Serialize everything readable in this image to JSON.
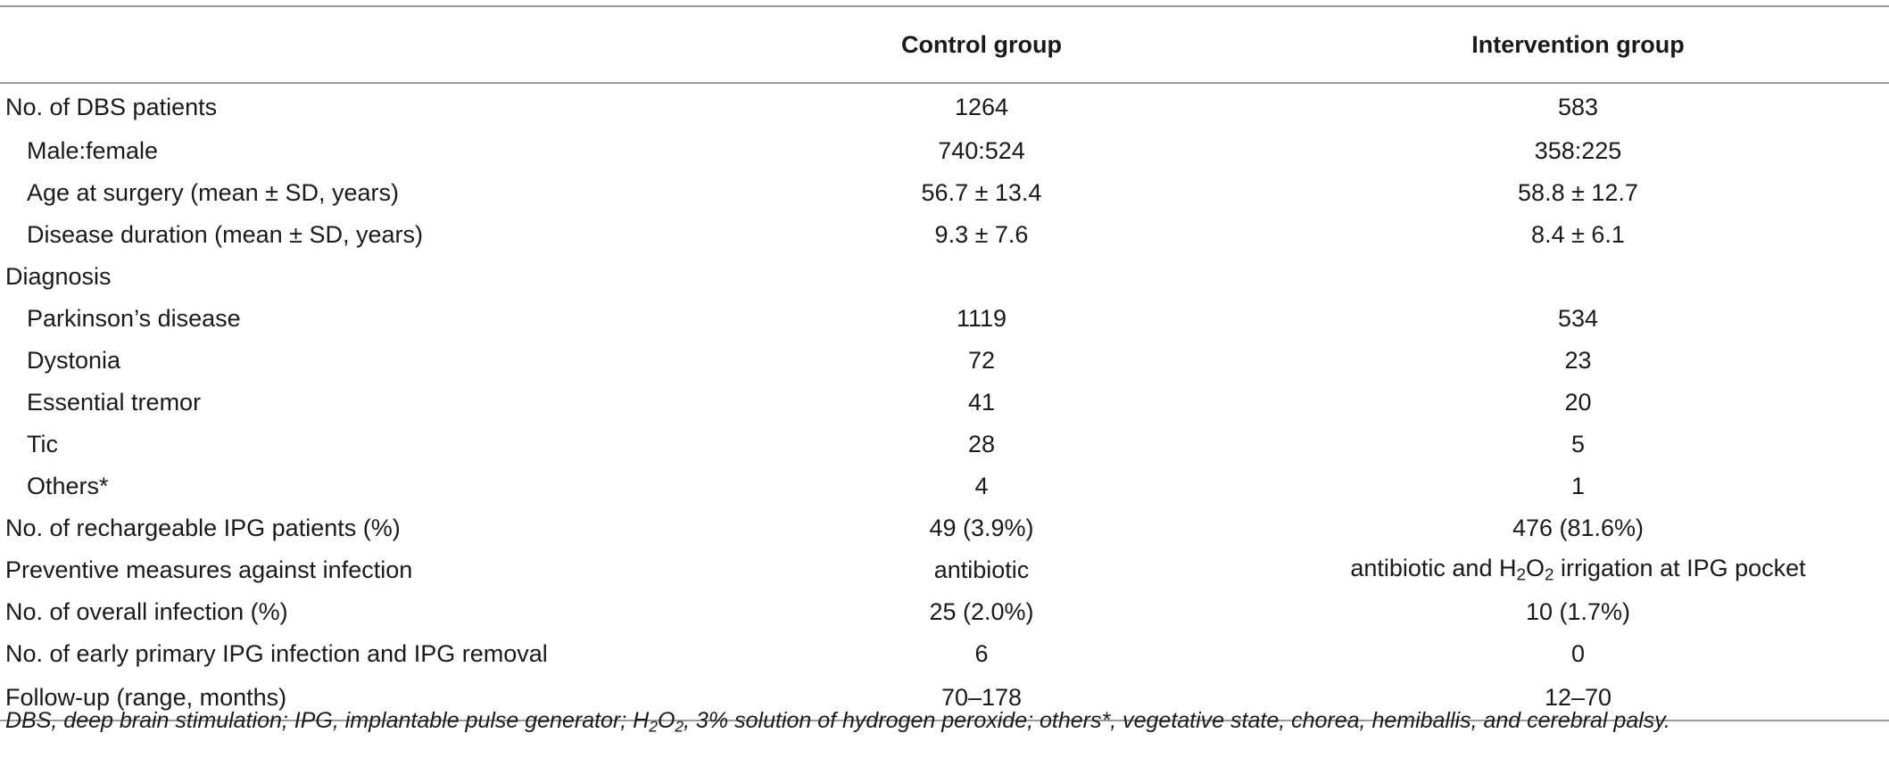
{
  "table": {
    "headers": [
      "",
      "Control group",
      "Intervention group"
    ],
    "rows": [
      {
        "label": "No. of DBS patients",
        "sub": false,
        "control": "1264",
        "intervention": "583"
      },
      {
        "label": "Male:female",
        "sub": true,
        "control": "740:524",
        "intervention": "358:225"
      },
      {
        "label": "Age at surgery (mean ± SD, years)",
        "sub": true,
        "control": "56.7 ± 13.4",
        "intervention": "58.8 ± 12.7"
      },
      {
        "label": "Disease duration (mean ± SD, years)",
        "sub": true,
        "control": "9.3 ± 7.6",
        "intervention": "8.4 ± 6.1"
      },
      {
        "label": "Diagnosis",
        "sub": false,
        "control": "",
        "intervention": ""
      },
      {
        "label": "Parkinson’s disease",
        "sub": true,
        "control": "1119",
        "intervention": "534"
      },
      {
        "label": "Dystonia",
        "sub": true,
        "control": "72",
        "intervention": "23"
      },
      {
        "label": "Essential tremor",
        "sub": true,
        "control": "41",
        "intervention": "20"
      },
      {
        "label": "Tic",
        "sub": true,
        "control": "28",
        "intervention": "5"
      },
      {
        "label": "Others*",
        "sub": true,
        "control": "4",
        "intervention": "1"
      },
      {
        "label": "No. of rechargeable IPG patients (%)",
        "sub": false,
        "control": "49 (3.9%)",
        "intervention": "476 (81.6%)"
      },
      {
        "label": "Preventive measures against infection",
        "sub": false,
        "control": "antibiotic",
        "intervention": "antibiotic and H2O2 irrigation at IPG pocket"
      },
      {
        "label": "No. of overall infection (%)",
        "sub": false,
        "control": "25 (2.0%)",
        "intervention": "10 (1.7%)"
      },
      {
        "label": "No. of early primary IPG infection and IPG removal",
        "sub": false,
        "control": "6",
        "intervention": "0"
      },
      {
        "label": "Follow-up (range, months)",
        "sub": false,
        "control": "70–178",
        "intervention": "12–70"
      }
    ]
  },
  "footnote": {
    "pre": "DBS, deep brain stimulation; IPG, implantable pulse generator; H",
    "sub1": "2",
    "mid": "O",
    "sub2": "2",
    "post": ", 3% solution of hydrogen peroxide; others*, vegetative state, chorea, hemiballis, and cerebral palsy."
  },
  "h2o2": {
    "before": "antibiotic and H",
    "sub1": "2",
    "mid": "O",
    "sub2": "2",
    "after": " irrigation at IPG pocket"
  }
}
